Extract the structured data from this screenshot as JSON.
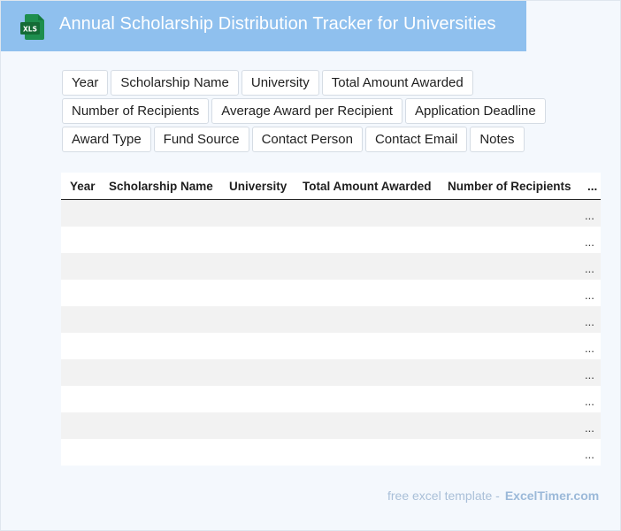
{
  "header": {
    "title": "Annual Scholarship Distribution Tracker for Universities",
    "icon": "xls-file-icon",
    "icon_label": "XLS",
    "accent_color": "#8fc0ee"
  },
  "fields": {
    "row1": [
      "Year",
      "Scholarship Name",
      "University",
      "Total Amount Awarded"
    ],
    "row2": [
      "Number of Recipients",
      "Average Award per Recipient",
      "Application Deadline"
    ],
    "row3": [
      "Award Type",
      "Fund Source",
      "Contact Person",
      "Contact Email",
      "Notes"
    ]
  },
  "table": {
    "columns": [
      "Year",
      "Scholarship Name",
      "University",
      "Total Amount Awarded",
      "Number of Recipients",
      "..."
    ],
    "rows": [
      "...",
      "...",
      "...",
      "...",
      "...",
      "...",
      "...",
      "...",
      "...",
      "..."
    ]
  },
  "footer": {
    "text": "free excel template -",
    "brand": "ExcelTimer.com"
  }
}
